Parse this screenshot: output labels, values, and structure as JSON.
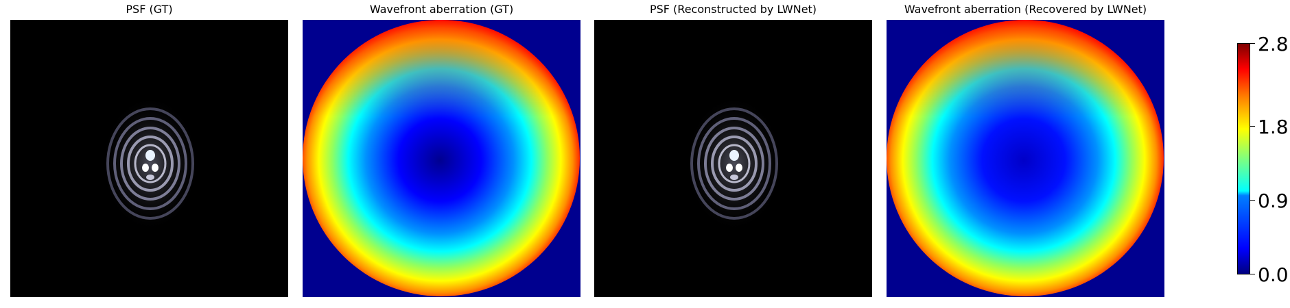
{
  "panels": [
    {
      "title": "PSF (GT)",
      "kind": "psf"
    },
    {
      "title": "Wavefront aberration (GT)",
      "kind": "wavefront"
    },
    {
      "title": "PSF (Reconstructed by LWNet)",
      "kind": "psf"
    },
    {
      "title": "Wavefront aberration (Recovered by LWNet)",
      "kind": "wavefront"
    }
  ],
  "colorbar": {
    "colormap": "jet",
    "range": [
      0.0,
      2.8
    ],
    "ticks": [
      "2.8",
      "1.8",
      "0.9",
      "0.0"
    ]
  },
  "chart_data": {
    "type": "heatmap",
    "images": [
      "PSF (GT)",
      "Wavefront aberration (GT)",
      "PSF (Reconstructed by LWNet)",
      "Wavefront aberration (Recovered by LWNet)"
    ],
    "colorbar_range": [
      0.0,
      2.8
    ],
    "colorbar_ticks": [
      0.0,
      0.9,
      1.8,
      2.8
    ]
  }
}
